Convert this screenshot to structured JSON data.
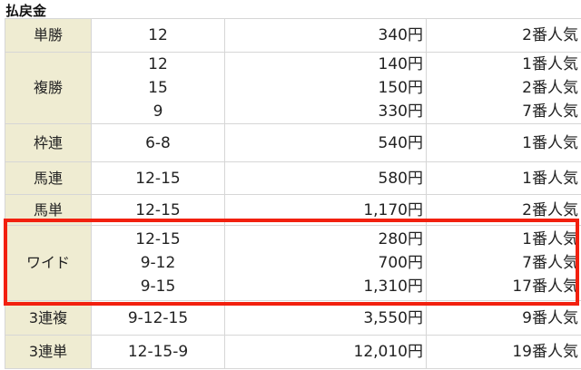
{
  "title": "払戻金",
  "highlight_color": "#f2200f",
  "header_bg": "#efecd2",
  "rows": [
    {
      "kind": "単勝",
      "entries": [
        {
          "num": "12",
          "payout": "340円",
          "pop": "2番人気"
        }
      ]
    },
    {
      "kind": "複勝",
      "entries": [
        {
          "num": "12",
          "payout": "140円",
          "pop": "1番人気"
        },
        {
          "num": "15",
          "payout": "150円",
          "pop": "2番人気"
        },
        {
          "num": "9",
          "payout": "330円",
          "pop": "7番人気"
        }
      ]
    },
    {
      "kind": "枠連",
      "entries": [
        {
          "num": "6-8",
          "payout": "540円",
          "pop": "1番人気"
        }
      ]
    },
    {
      "kind": "馬連",
      "entries": [
        {
          "num": "12-15",
          "payout": "580円",
          "pop": "1番人気"
        }
      ]
    },
    {
      "kind": "馬単",
      "entries": [
        {
          "num": "12-15",
          "payout": "1,170円",
          "pop": "2番人気"
        }
      ]
    },
    {
      "kind": "ワイド",
      "highlighted": true,
      "entries": [
        {
          "num": "12-15",
          "payout": "280円",
          "pop": "1番人気"
        },
        {
          "num": "9-12",
          "payout": "700円",
          "pop": "7番人気"
        },
        {
          "num": "9-15",
          "payout": "1,310円",
          "pop": "17番人気"
        }
      ]
    },
    {
      "kind": "3連複",
      "entries": [
        {
          "num": "9-12-15",
          "payout": "3,550円",
          "pop": "9番人気"
        }
      ]
    },
    {
      "kind": "3連単",
      "entries": [
        {
          "num": "12-15-9",
          "payout": "12,010円",
          "pop": "19番人気"
        }
      ]
    }
  ]
}
